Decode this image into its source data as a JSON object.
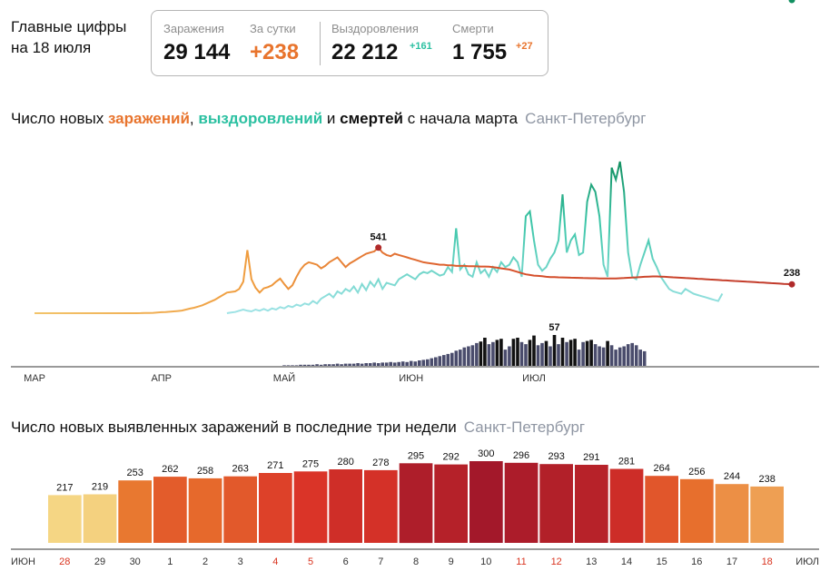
{
  "header": {
    "line1": "Главные цифры",
    "line2": "на 18 июля"
  },
  "stats": {
    "infections_label": "Заражения",
    "infections_value": "29 144",
    "day_label": "За сутки",
    "day_value": "+238",
    "recovered_label": "Выздоровления",
    "recovered_value": "22 212",
    "recovered_delta": "+161",
    "deaths_label": "Смерти",
    "deaths_value": "1 755",
    "deaths_delta": "+27"
  },
  "colors": {
    "infections": "#e8742d",
    "recovered": "#2bc0a1",
    "deaths": "#2a2d52"
  },
  "section1": {
    "part1": "Число новых ",
    "infections_word": "заражений",
    "comma": ", ",
    "recoveries_word": "выздоровлений",
    "and": " и ",
    "deaths_word": "смертей",
    "tail": " с начала марта",
    "city": "Санкт-Петербург"
  },
  "section2": {
    "title": "Число новых выявленных заражений в последние три недели",
    "city": "Санкт-Петербург"
  },
  "chart_data": [
    {
      "type": "line",
      "months": [
        "МАР",
        "АПР",
        "МАЙ",
        "ИЮН",
        "ИЮЛ"
      ],
      "series": [
        {
          "key": "infections",
          "color": "#e8742d",
          "values": [
            0,
            0,
            0,
            0,
            0,
            0,
            0,
            0,
            0,
            0,
            0,
            0,
            0,
            0,
            0,
            0,
            0,
            0,
            0,
            0,
            0,
            0,
            0,
            0,
            0,
            0,
            1,
            2,
            2,
            3,
            5,
            8,
            10,
            12,
            15,
            18,
            22,
            30,
            38,
            45,
            55,
            65,
            80,
            95,
            110,
            130,
            150,
            170,
            175,
            180,
            200,
            260,
            520,
            280,
            210,
            170,
            205,
            215,
            230,
            260,
            285,
            240,
            200,
            230,
            300,
            360,
            400,
            420,
            410,
            400,
            370,
            390,
            420,
            440,
            460,
            420,
            380,
            410,
            430,
            450,
            470,
            490,
            500,
            510,
            541,
            500,
            480,
            470,
            490,
            480,
            470,
            460,
            450,
            440,
            430,
            420,
            415,
            410,
            405,
            400,
            400,
            395,
            395,
            390,
            390,
            390,
            388,
            388,
            386,
            385,
            385,
            383,
            380,
            375,
            370,
            365,
            360,
            350,
            340,
            330,
            320,
            315,
            310,
            308,
            305,
            300,
            298,
            297,
            296,
            295,
            294,
            293,
            292,
            291,
            290,
            289,
            288,
            288,
            287,
            286,
            286,
            286,
            287,
            288,
            290,
            292,
            294,
            296,
            298,
            300,
            302,
            303,
            303,
            302,
            300,
            298,
            296,
            294,
            292,
            290,
            288,
            286,
            284,
            282,
            280,
            278,
            276,
            274,
            272,
            270,
            268,
            266,
            264,
            262,
            260,
            258,
            256,
            254,
            252,
            250,
            248,
            246,
            244,
            242,
            240,
            238
          ]
        },
        {
          "key": "recovered",
          "color": "#2bc0a1",
          "values": [
            0,
            0,
            0,
            0,
            0,
            0,
            0,
            0,
            0,
            0,
            0,
            0,
            0,
            0,
            0,
            0,
            0,
            0,
            0,
            0,
            0,
            0,
            0,
            0,
            0,
            0,
            0,
            0,
            0,
            0,
            0,
            0,
            0,
            0,
            0,
            0,
            0,
            0,
            0,
            0,
            0,
            0,
            0,
            0,
            0,
            0,
            0,
            0,
            5,
            10,
            20,
            30,
            20,
            15,
            30,
            20,
            35,
            20,
            40,
            30,
            50,
            40,
            60,
            50,
            70,
            60,
            80,
            70,
            100,
            80,
            120,
            140,
            160,
            130,
            180,
            160,
            200,
            180,
            220,
            170,
            240,
            190,
            260,
            220,
            280,
            200,
            250,
            240,
            230,
            280,
            300,
            320,
            300,
            280,
            320,
            340,
            330,
            350,
            330,
            310,
            320,
            380,
            340,
            700,
            360,
            400,
            320,
            300,
            420,
            330,
            360,
            300,
            380,
            340,
            420,
            380,
            400,
            460,
            420,
            300,
            800,
            840,
            600,
            400,
            350,
            380,
            450,
            500,
            600,
            980,
            500,
            600,
            650,
            480,
            500,
            920,
            1060,
            1000,
            800,
            400,
            300,
            1200,
            1100,
            1250,
            1000,
            500,
            300,
            280,
            400,
            500,
            600,
            450,
            380,
            300,
            250,
            200,
            180,
            170,
            160,
            200,
            180,
            160,
            150,
            140,
            130,
            120,
            110,
            100,
            161
          ]
        },
        {
          "key": "deaths",
          "color": "#2a2d52",
          "type": "bar",
          "values": [
            0,
            0,
            0,
            0,
            0,
            0,
            0,
            0,
            0,
            0,
            0,
            0,
            0,
            0,
            0,
            0,
            0,
            0,
            0,
            0,
            0,
            0,
            0,
            0,
            0,
            0,
            0,
            0,
            0,
            0,
            0,
            0,
            0,
            0,
            0,
            0,
            0,
            0,
            0,
            0,
            0,
            0,
            0,
            0,
            0,
            0,
            0,
            0,
            0,
            0,
            0,
            0,
            0,
            0,
            0,
            0,
            0,
            0,
            0,
            0,
            0,
            1,
            1,
            1,
            1,
            2,
            2,
            2,
            2,
            3,
            2,
            3,
            3,
            3,
            4,
            3,
            4,
            4,
            4,
            5,
            4,
            5,
            5,
            6,
            5,
            6,
            6,
            7,
            6,
            7,
            8,
            7,
            9,
            8,
            10,
            11,
            12,
            14,
            16,
            18,
            20,
            22,
            24,
            28,
            30,
            34,
            36,
            38,
            42,
            45,
            52,
            40,
            44,
            48,
            50,
            30,
            36,
            50,
            52,
            44,
            40,
            48,
            56,
            38,
            42,
            46,
            36,
            57,
            40,
            52,
            44,
            48,
            50,
            30,
            44,
            46,
            48,
            40,
            36,
            34,
            46,
            38,
            30,
            34,
            36,
            40,
            42,
            38,
            30,
            27
          ]
        }
      ],
      "labels": {
        "infections_peak": "541",
        "infections_last": "238",
        "recovered_last": "161",
        "deaths_peak": "57",
        "deaths_last": "27"
      }
    },
    {
      "type": "bar",
      "categories": [
        "28",
        "29",
        "30",
        "1",
        "2",
        "3",
        "4",
        "5",
        "6",
        "7",
        "8",
        "9",
        "10",
        "11",
        "12",
        "13",
        "14",
        "15",
        "16",
        "17",
        "18"
      ],
      "values": [
        217,
        219,
        253,
        262,
        258,
        263,
        271,
        275,
        280,
        278,
        295,
        292,
        300,
        296,
        293,
        291,
        281,
        264,
        256,
        244,
        238
      ],
      "weekend_indices": [
        0,
        6,
        7,
        13,
        14,
        20
      ],
      "start_month": "ИЮН",
      "end_month": "ИЮЛ"
    }
  ]
}
